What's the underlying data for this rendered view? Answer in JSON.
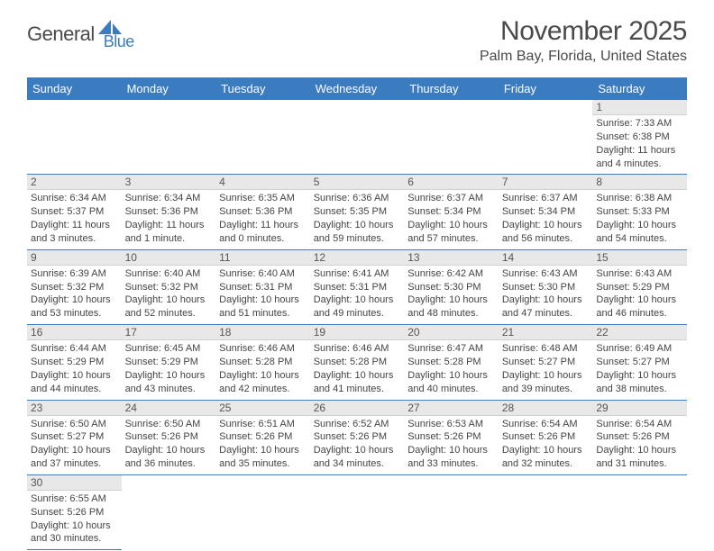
{
  "logo": {
    "general": "General",
    "blue": "Blue"
  },
  "title": "November 2025",
  "location": "Palm Bay, Florida, United States",
  "weekdays": [
    "Sunday",
    "Monday",
    "Tuesday",
    "Wednesday",
    "Thursday",
    "Friday",
    "Saturday"
  ],
  "colors": {
    "header_bg": "#3b7bbf",
    "header_text": "#ffffff",
    "daynum_bg": "#e8e8e8",
    "border": "#3b7bbf",
    "text": "#444444",
    "title_text": "#4a4a4a"
  },
  "days": {
    "1": {
      "sunrise": "7:33 AM",
      "sunset": "6:38 PM",
      "daylight": "11 hours and 4 minutes."
    },
    "2": {
      "sunrise": "6:34 AM",
      "sunset": "5:37 PM",
      "daylight": "11 hours and 3 minutes."
    },
    "3": {
      "sunrise": "6:34 AM",
      "sunset": "5:36 PM",
      "daylight": "11 hours and 1 minute."
    },
    "4": {
      "sunrise": "6:35 AM",
      "sunset": "5:36 PM",
      "daylight": "11 hours and 0 minutes."
    },
    "5": {
      "sunrise": "6:36 AM",
      "sunset": "5:35 PM",
      "daylight": "10 hours and 59 minutes."
    },
    "6": {
      "sunrise": "6:37 AM",
      "sunset": "5:34 PM",
      "daylight": "10 hours and 57 minutes."
    },
    "7": {
      "sunrise": "6:37 AM",
      "sunset": "5:34 PM",
      "daylight": "10 hours and 56 minutes."
    },
    "8": {
      "sunrise": "6:38 AM",
      "sunset": "5:33 PM",
      "daylight": "10 hours and 54 minutes."
    },
    "9": {
      "sunrise": "6:39 AM",
      "sunset": "5:32 PM",
      "daylight": "10 hours and 53 minutes."
    },
    "10": {
      "sunrise": "6:40 AM",
      "sunset": "5:32 PM",
      "daylight": "10 hours and 52 minutes."
    },
    "11": {
      "sunrise": "6:40 AM",
      "sunset": "5:31 PM",
      "daylight": "10 hours and 51 minutes."
    },
    "12": {
      "sunrise": "6:41 AM",
      "sunset": "5:31 PM",
      "daylight": "10 hours and 49 minutes."
    },
    "13": {
      "sunrise": "6:42 AM",
      "sunset": "5:30 PM",
      "daylight": "10 hours and 48 minutes."
    },
    "14": {
      "sunrise": "6:43 AM",
      "sunset": "5:30 PM",
      "daylight": "10 hours and 47 minutes."
    },
    "15": {
      "sunrise": "6:43 AM",
      "sunset": "5:29 PM",
      "daylight": "10 hours and 46 minutes."
    },
    "16": {
      "sunrise": "6:44 AM",
      "sunset": "5:29 PM",
      "daylight": "10 hours and 44 minutes."
    },
    "17": {
      "sunrise": "6:45 AM",
      "sunset": "5:29 PM",
      "daylight": "10 hours and 43 minutes."
    },
    "18": {
      "sunrise": "6:46 AM",
      "sunset": "5:28 PM",
      "daylight": "10 hours and 42 minutes."
    },
    "19": {
      "sunrise": "6:46 AM",
      "sunset": "5:28 PM",
      "daylight": "10 hours and 41 minutes."
    },
    "20": {
      "sunrise": "6:47 AM",
      "sunset": "5:28 PM",
      "daylight": "10 hours and 40 minutes."
    },
    "21": {
      "sunrise": "6:48 AM",
      "sunset": "5:27 PM",
      "daylight": "10 hours and 39 minutes."
    },
    "22": {
      "sunrise": "6:49 AM",
      "sunset": "5:27 PM",
      "daylight": "10 hours and 38 minutes."
    },
    "23": {
      "sunrise": "6:50 AM",
      "sunset": "5:27 PM",
      "daylight": "10 hours and 37 minutes."
    },
    "24": {
      "sunrise": "6:50 AM",
      "sunset": "5:26 PM",
      "daylight": "10 hours and 36 minutes."
    },
    "25": {
      "sunrise": "6:51 AM",
      "sunset": "5:26 PM",
      "daylight": "10 hours and 35 minutes."
    },
    "26": {
      "sunrise": "6:52 AM",
      "sunset": "5:26 PM",
      "daylight": "10 hours and 34 minutes."
    },
    "27": {
      "sunrise": "6:53 AM",
      "sunset": "5:26 PM",
      "daylight": "10 hours and 33 minutes."
    },
    "28": {
      "sunrise": "6:54 AM",
      "sunset": "5:26 PM",
      "daylight": "10 hours and 32 minutes."
    },
    "29": {
      "sunrise": "6:54 AM",
      "sunset": "5:26 PM",
      "daylight": "10 hours and 31 minutes."
    },
    "30": {
      "sunrise": "6:55 AM",
      "sunset": "5:26 PM",
      "daylight": "10 hours and 30 minutes."
    }
  },
  "labels": {
    "sunrise": "Sunrise: ",
    "sunset": "Sunset: ",
    "daylight": "Daylight: "
  },
  "layout": {
    "first_weekday_index": 6,
    "num_days": 30,
    "columns": 7
  }
}
